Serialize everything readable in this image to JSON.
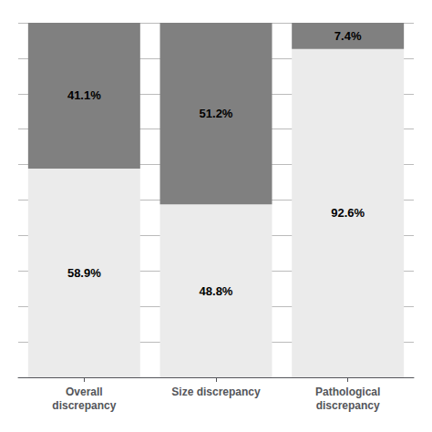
{
  "chart_data": {
    "type": "bar",
    "stacked": true,
    "categories": [
      "Overall\ndiscrepancy",
      "Size discrepancy",
      "Pathological\ndiscrepancy"
    ],
    "series": [
      {
        "color": "#ebebeb",
        "values": [
          58.9,
          48.8,
          92.6
        ],
        "value_labels": [
          "58.9%",
          "48.8%",
          "92.6%"
        ]
      },
      {
        "color": "#808080",
        "values": [
          41.1,
          51.2,
          7.4
        ],
        "value_labels": [
          "41.1%",
          "51.2%",
          "7.4%"
        ]
      }
    ],
    "ylim": [
      0,
      100
    ],
    "yticks": [
      0,
      10,
      20,
      30,
      40,
      50,
      60,
      70,
      80,
      90,
      100
    ],
    "grid": true,
    "tick_labels": "x",
    "data_labels": true
  }
}
